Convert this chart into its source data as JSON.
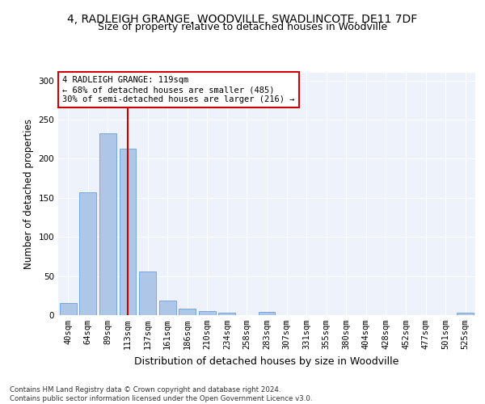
{
  "title": "4, RADLEIGH GRANGE, WOODVILLE, SWADLINCOTE, DE11 7DF",
  "subtitle": "Size of property relative to detached houses in Woodville",
  "xlabel": "Distribution of detached houses by size in Woodville",
  "ylabel": "Number of detached properties",
  "bar_labels": [
    "40sqm",
    "64sqm",
    "89sqm",
    "113sqm",
    "137sqm",
    "161sqm",
    "186sqm",
    "210sqm",
    "234sqm",
    "258sqm",
    "283sqm",
    "307sqm",
    "331sqm",
    "355sqm",
    "380sqm",
    "404sqm",
    "428sqm",
    "452sqm",
    "477sqm",
    "501sqm",
    "525sqm"
  ],
  "bar_values": [
    16,
    157,
    233,
    213,
    56,
    19,
    8,
    5,
    3,
    0,
    4,
    0,
    0,
    0,
    0,
    0,
    0,
    0,
    0,
    0,
    3
  ],
  "bar_color": "#aec6e8",
  "bar_edge_color": "#6a9fd8",
  "vline_x": 3.0,
  "vline_color": "#cc0000",
  "annotation_text": "4 RADLEIGH GRANGE: 119sqm\n← 68% of detached houses are smaller (485)\n30% of semi-detached houses are larger (216) →",
  "annotation_box_color": "#ffffff",
  "annotation_box_edge": "#cc0000",
  "ylim": [
    0,
    310
  ],
  "yticks": [
    0,
    50,
    100,
    150,
    200,
    250,
    300
  ],
  "background_color": "#eef2fb",
  "grid_color": "#ffffff",
  "footer_text": "Contains HM Land Registry data © Crown copyright and database right 2024.\nContains public sector information licensed under the Open Government Licence v3.0.",
  "title_fontsize": 10,
  "subtitle_fontsize": 9,
  "ylabel_fontsize": 8.5,
  "xlabel_fontsize": 9,
  "tick_fontsize": 7.5,
  "annotation_fontsize": 7.5,
  "footer_fontsize": 6.2
}
